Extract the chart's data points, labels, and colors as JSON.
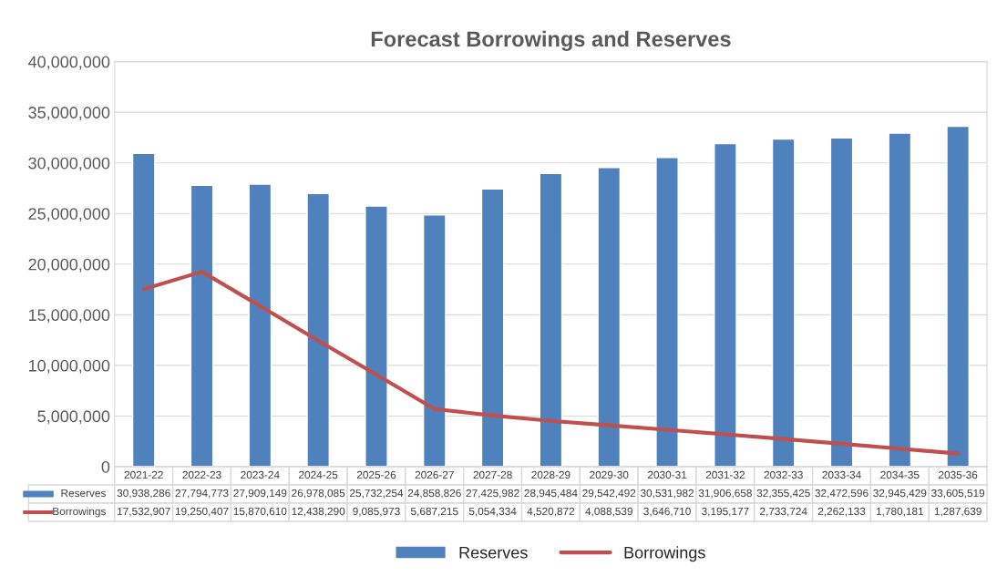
{
  "chart_data": {
    "type": "bar",
    "title": "Forecast Borrowings and Reserves",
    "categories": [
      "2021-22",
      "2022-23",
      "2023-24",
      "2024-25",
      "2025-26",
      "2026-27",
      "2027-28",
      "2028-29",
      "2029-30",
      "2030-31",
      "2031-32",
      "2032-33",
      "2033-34",
      "2034-35",
      "2035-36"
    ],
    "series": [
      {
        "name": "Reserves",
        "color": "#4f81bd",
        "values": [
          30938286,
          27794773,
          27909149,
          26978085,
          25732254,
          24858826,
          27425982,
          28945484,
          29542492,
          30531982,
          31906658,
          32355425,
          32472596,
          32945429,
          33605519
        ],
        "value_labels": [
          "30,938,286",
          "27,794,773",
          "27,909,149",
          "26,978,085",
          "25,732,254",
          "24,858,826",
          "27,425,982",
          "28,945,484",
          "29,542,492",
          "30,531,982",
          "31,906,658",
          "32,355,425",
          "32,472,596",
          "32,945,429",
          "33,605,519"
        ]
      },
      {
        "name": "Borrowings",
        "type": "line",
        "color": "#c0504d",
        "values": [
          17532907,
          19250407,
          15870610,
          12438290,
          9085973,
          5687215,
          5054334,
          4520872,
          4088539,
          3646710,
          3195177,
          2733724,
          2262133,
          1780181,
          1287639
        ],
        "value_labels": [
          "17,532,907",
          "19,250,407",
          "15,870,610",
          "12,438,290",
          "9,085,973",
          "5,687,215",
          "5,054,334",
          "4,520,872",
          "4,088,539",
          "3,646,710",
          "3,195,177",
          "2,733,724",
          "2,262,133",
          "1,780,181",
          "1,287,639"
        ]
      }
    ],
    "ylim": [
      0,
      40000000
    ],
    "yticks": [
      {
        "value": 0,
        "label": "0"
      },
      {
        "value": 5000000,
        "label": "5,000,000"
      },
      {
        "value": 10000000,
        "label": "10,000,000"
      },
      {
        "value": 15000000,
        "label": "15,000,000"
      },
      {
        "value": 20000000,
        "label": "20,000,000"
      },
      {
        "value": 25000000,
        "label": "25,000,000"
      },
      {
        "value": 30000000,
        "label": "30,000,000"
      },
      {
        "value": 35000000,
        "label": "35,000,000"
      },
      {
        "value": 40000000,
        "label": "40,000,000"
      }
    ],
    "grid": "y",
    "legend": "bottom",
    "marker": "none"
  }
}
